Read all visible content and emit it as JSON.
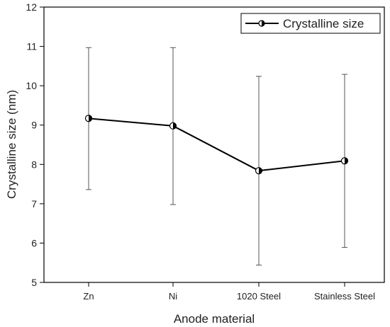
{
  "chart_data": {
    "type": "line",
    "categories": [
      "Zn",
      "Ni",
      "1020 Steel",
      "Stainless Steel"
    ],
    "series": [
      {
        "name": "Crystalline size",
        "values": [
          9.17,
          8.98,
          7.84,
          8.09
        ],
        "error_low": [
          7.36,
          6.98,
          5.44,
          5.89
        ],
        "error_high": [
          10.97,
          10.97,
          10.24,
          10.29
        ]
      }
    ],
    "xlabel": "Anode material",
    "ylabel": "Crystalline size (nm)",
    "ylim": [
      5,
      12
    ],
    "yticks": [
      5,
      6,
      7,
      8,
      9,
      10,
      11,
      12
    ],
    "grid": false,
    "legend_position": "top-right",
    "colors": {
      "line": "#000000",
      "marker_fill": "#000000",
      "errorbar": "#555555"
    }
  }
}
